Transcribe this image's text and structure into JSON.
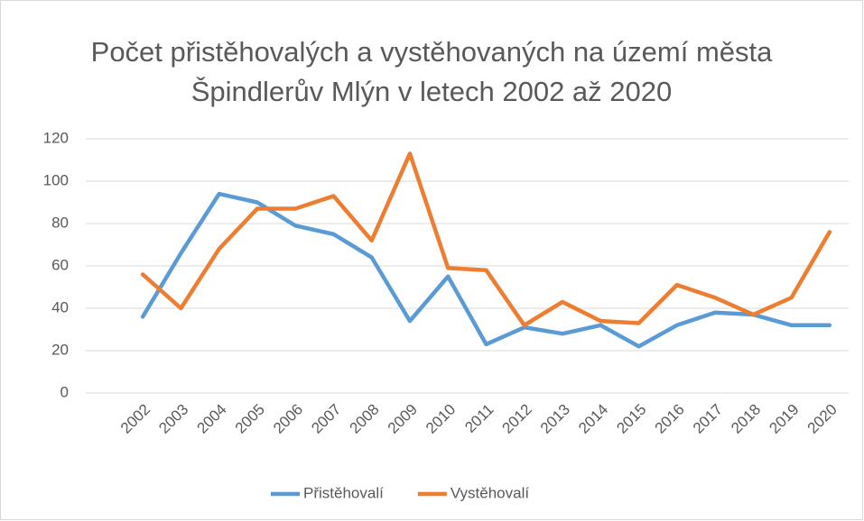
{
  "chart_data": {
    "type": "line",
    "title": "Počet přistěhovalých a vystěhovaných na území města Špindlerův Mlýn v letech 2002 až 2020",
    "categories": [
      "2002",
      "2003",
      "2004",
      "2005",
      "2006",
      "2007",
      "2008",
      "2009",
      "2010",
      "2011",
      "2012",
      "2013",
      "2014",
      "2015",
      "2016",
      "2017",
      "2018",
      "2019",
      "2020"
    ],
    "series": [
      {
        "name": "Přistěhovalí",
        "color": "#5b9bd5",
        "values": [
          36,
          66,
          94,
          90,
          79,
          75,
          64,
          34,
          55,
          23,
          31,
          28,
          32,
          22,
          32,
          38,
          37,
          32,
          32
        ]
      },
      {
        "name": "Vystěhovalí",
        "color": "#ed7d31",
        "values": [
          56,
          40,
          68,
          87,
          87,
          93,
          72,
          113,
          59,
          58,
          32,
          43,
          34,
          33,
          51,
          45,
          37,
          45,
          76
        ]
      }
    ],
    "ylim": [
      0,
      120
    ],
    "yticks": [
      0,
      20,
      40,
      60,
      80,
      100,
      120
    ],
    "grid": true,
    "legend": "bottom"
  }
}
